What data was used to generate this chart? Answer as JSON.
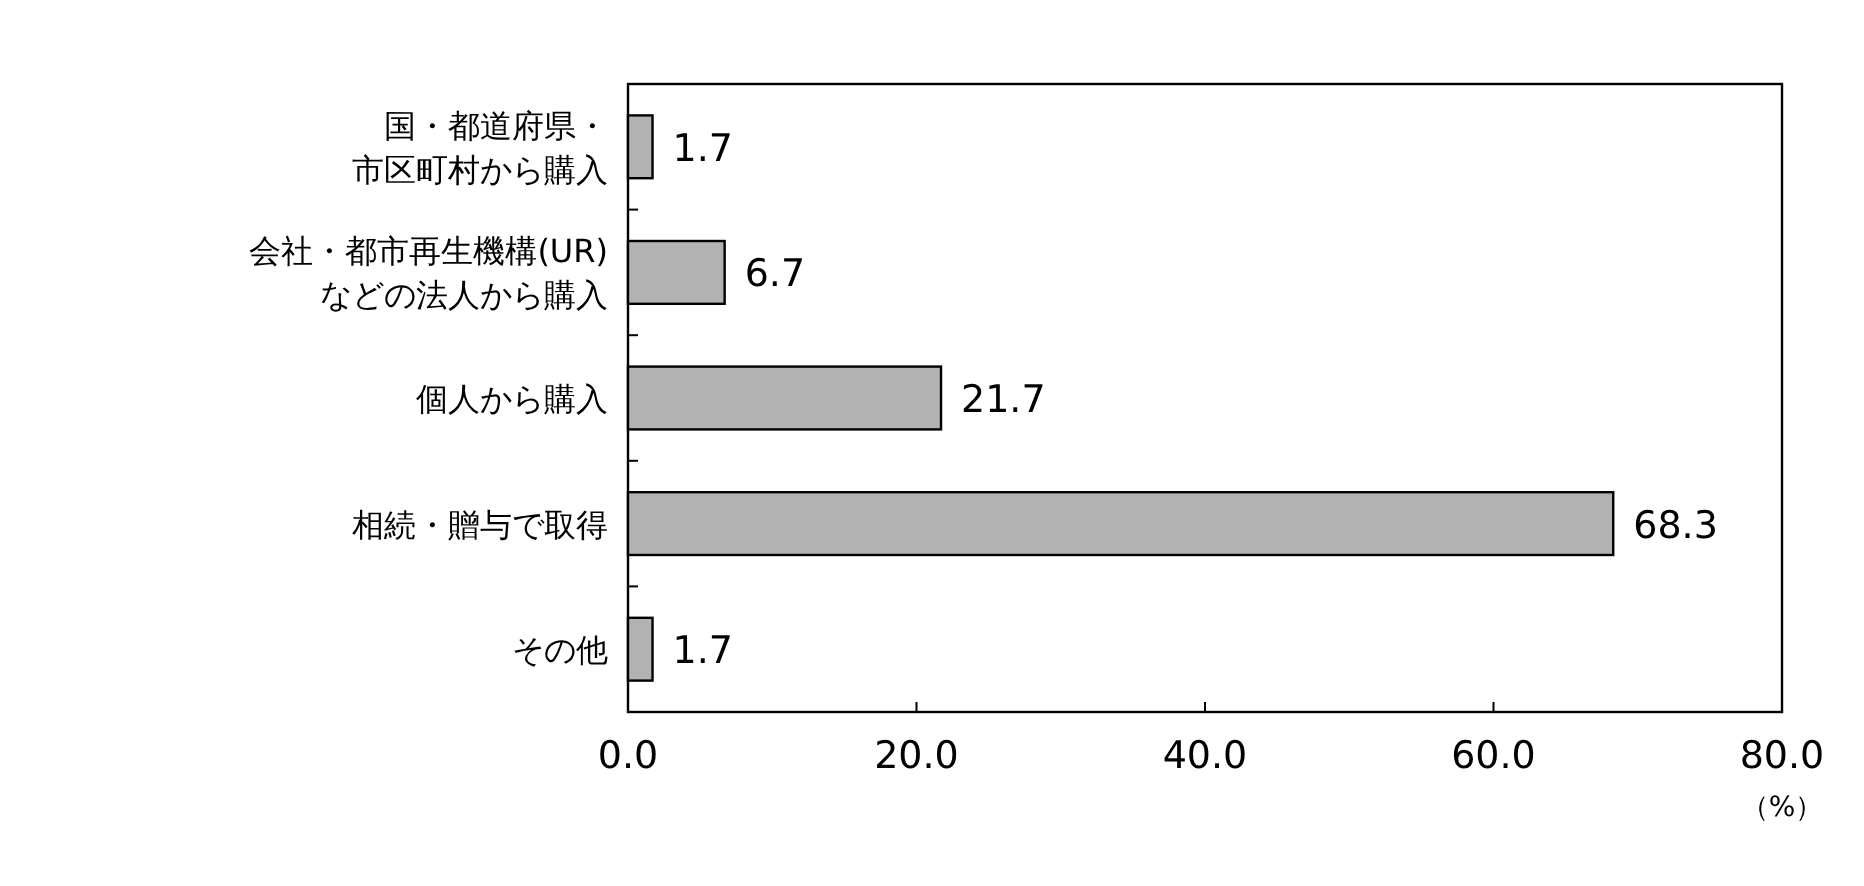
{
  "chart_data": {
    "type": "bar",
    "orientation": "horizontal",
    "categories": [
      "国・都道府県・市区町村から購入",
      "会社・都市再生機構(UR)などの法人から購入",
      "個人から購入",
      "相続・贈与で取得",
      "その他"
    ],
    "values": [
      1.7,
      6.7,
      21.7,
      68.3,
      1.7
    ],
    "color": "#b2b2b2",
    "xlim": [
      0,
      80
    ],
    "xticks": [
      {
        "value": 0,
        "label": "0.0"
      },
      {
        "value": 20,
        "label": "20.0"
      },
      {
        "value": 40,
        "label": "40.0"
      },
      {
        "value": 60,
        "label": "60.0"
      },
      {
        "value": 80,
        "label": "80.0"
      }
    ],
    "xlabel": "（%）",
    "data_labels": true
  }
}
